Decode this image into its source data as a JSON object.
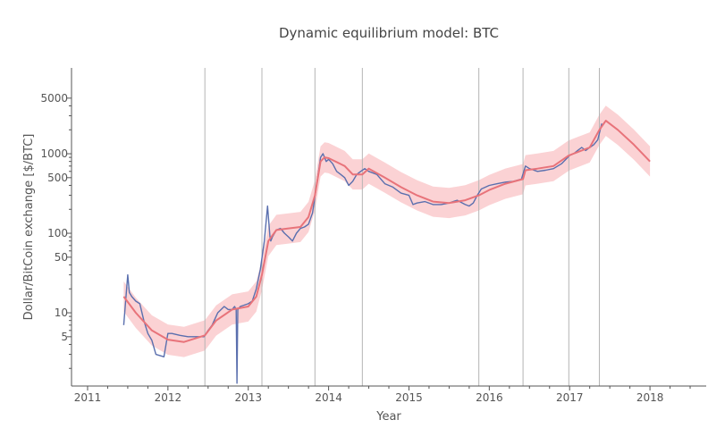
{
  "chart_data": {
    "type": "line",
    "title": "Dynamic equilibrium model: BTC",
    "xlabel": "Year",
    "ylabel": "Dollar/BitCoin exchange [$/BTC]",
    "xlim": [
      2010.8,
      2018.7
    ],
    "ylim": [
      1.2,
      12000
    ],
    "y_scale": "log",
    "x_ticks": [
      2011,
      2012,
      2013,
      2014,
      2015,
      2016,
      2017,
      2018
    ],
    "y_ticks": [
      5,
      10,
      50,
      100,
      500,
      1000,
      5000
    ],
    "grid": "vertical lines at shock dates",
    "legend": "none",
    "shock_lines": [
      2012.46,
      2013.17,
      2013.83,
      2014.42,
      2015.87,
      2016.42,
      2016.99,
      2017.37
    ],
    "colors": {
      "data": "#5a6fae",
      "model": "#e8737a",
      "band": "#fbd2d4",
      "grid": "#b4b4b4"
    },
    "series": [
      {
        "role": "observed",
        "x": [
          2011.45,
          2011.5,
          2011.52,
          2011.55,
          2011.6,
          2011.65,
          2011.7,
          2011.75,
          2011.8,
          2011.85,
          2011.9,
          2011.95,
          2012.0,
          2012.05,
          2012.15,
          2012.25,
          2012.35,
          2012.45,
          2012.5,
          2012.55,
          2012.62,
          2012.7,
          2012.75,
          2012.8,
          2012.83,
          2012.85,
          2012.86,
          2012.87,
          2012.9,
          2013.0,
          2013.05,
          2013.1,
          2013.15,
          2013.2,
          2013.24,
          2013.27,
          2013.28,
          2013.3,
          2013.35,
          2013.4,
          2013.45,
          2013.5,
          2013.55,
          2013.6,
          2013.65,
          2013.7,
          2013.75,
          2013.8,
          2013.85,
          2013.9,
          2013.93,
          2013.97,
          2014.0,
          2014.05,
          2014.1,
          2014.15,
          2014.2,
          2014.25,
          2014.3,
          2014.35,
          2014.4,
          2014.45,
          2014.5,
          2014.6,
          2014.7,
          2014.8,
          2014.9,
          2015.0,
          2015.05,
          2015.1,
          2015.2,
          2015.3,
          2015.4,
          2015.5,
          2015.6,
          2015.7,
          2015.75,
          2015.8,
          2015.85,
          2015.9,
          2016.0,
          2016.1,
          2016.2,
          2016.3,
          2016.4,
          2016.45,
          2016.5,
          2016.6,
          2016.7,
          2016.8,
          2016.9,
          2017.0,
          2017.05,
          2017.1,
          2017.15,
          2017.2,
          2017.25,
          2017.3,
          2017.35,
          2017.4
        ],
        "y": [
          7,
          30,
          18,
          16,
          14,
          13,
          8,
          5.5,
          4.5,
          3,
          2.9,
          2.8,
          5.5,
          5.5,
          5.2,
          5,
          5,
          5,
          6,
          7,
          10,
          12,
          11,
          11,
          12,
          11,
          1.3,
          11,
          12,
          13,
          14,
          20,
          35,
          80,
          220,
          90,
          80,
          90,
          110,
          115,
          100,
          90,
          80,
          100,
          115,
          120,
          130,
          180,
          400,
          900,
          1000,
          800,
          850,
          750,
          600,
          550,
          500,
          400,
          450,
          550,
          600,
          650,
          600,
          550,
          420,
          380,
          320,
          300,
          230,
          240,
          250,
          230,
          230,
          240,
          260,
          230,
          220,
          240,
          300,
          360,
          400,
          420,
          440,
          450,
          480,
          700,
          650,
          600,
          620,
          650,
          750,
          950,
          1000,
          1100,
          1200,
          1100,
          1200,
          1300,
          1500,
          2400
        ]
      },
      {
        "role": "model",
        "x": [
          2011.45,
          2011.6,
          2011.8,
          2012.0,
          2012.2,
          2012.46,
          2012.6,
          2012.8,
          2013.0,
          2013.1,
          2013.17,
          2013.25,
          2013.35,
          2013.5,
          2013.65,
          2013.75,
          2013.83,
          2013.9,
          2013.95,
          2014.0,
          2014.2,
          2014.3,
          2014.42,
          2014.5,
          2014.7,
          2014.9,
          2015.1,
          2015.3,
          2015.5,
          2015.7,
          2015.87,
          2016.0,
          2016.2,
          2016.42,
          2016.45,
          2016.6,
          2016.8,
          2016.99,
          2017.1,
          2017.25,
          2017.37,
          2017.45,
          2017.6,
          2017.8,
          2018.0
        ],
        "y": [
          16,
          10,
          6,
          4.6,
          4.3,
          5.2,
          8,
          11,
          12,
          16,
          30,
          80,
          110,
          115,
          120,
          160,
          300,
          800,
          900,
          880,
          700,
          550,
          550,
          650,
          500,
          380,
          300,
          250,
          240,
          260,
          300,
          350,
          420,
          480,
          620,
          650,
          700,
          950,
          1050,
          1200,
          2000,
          2600,
          2000,
          1300,
          800
        ]
      }
    ]
  }
}
